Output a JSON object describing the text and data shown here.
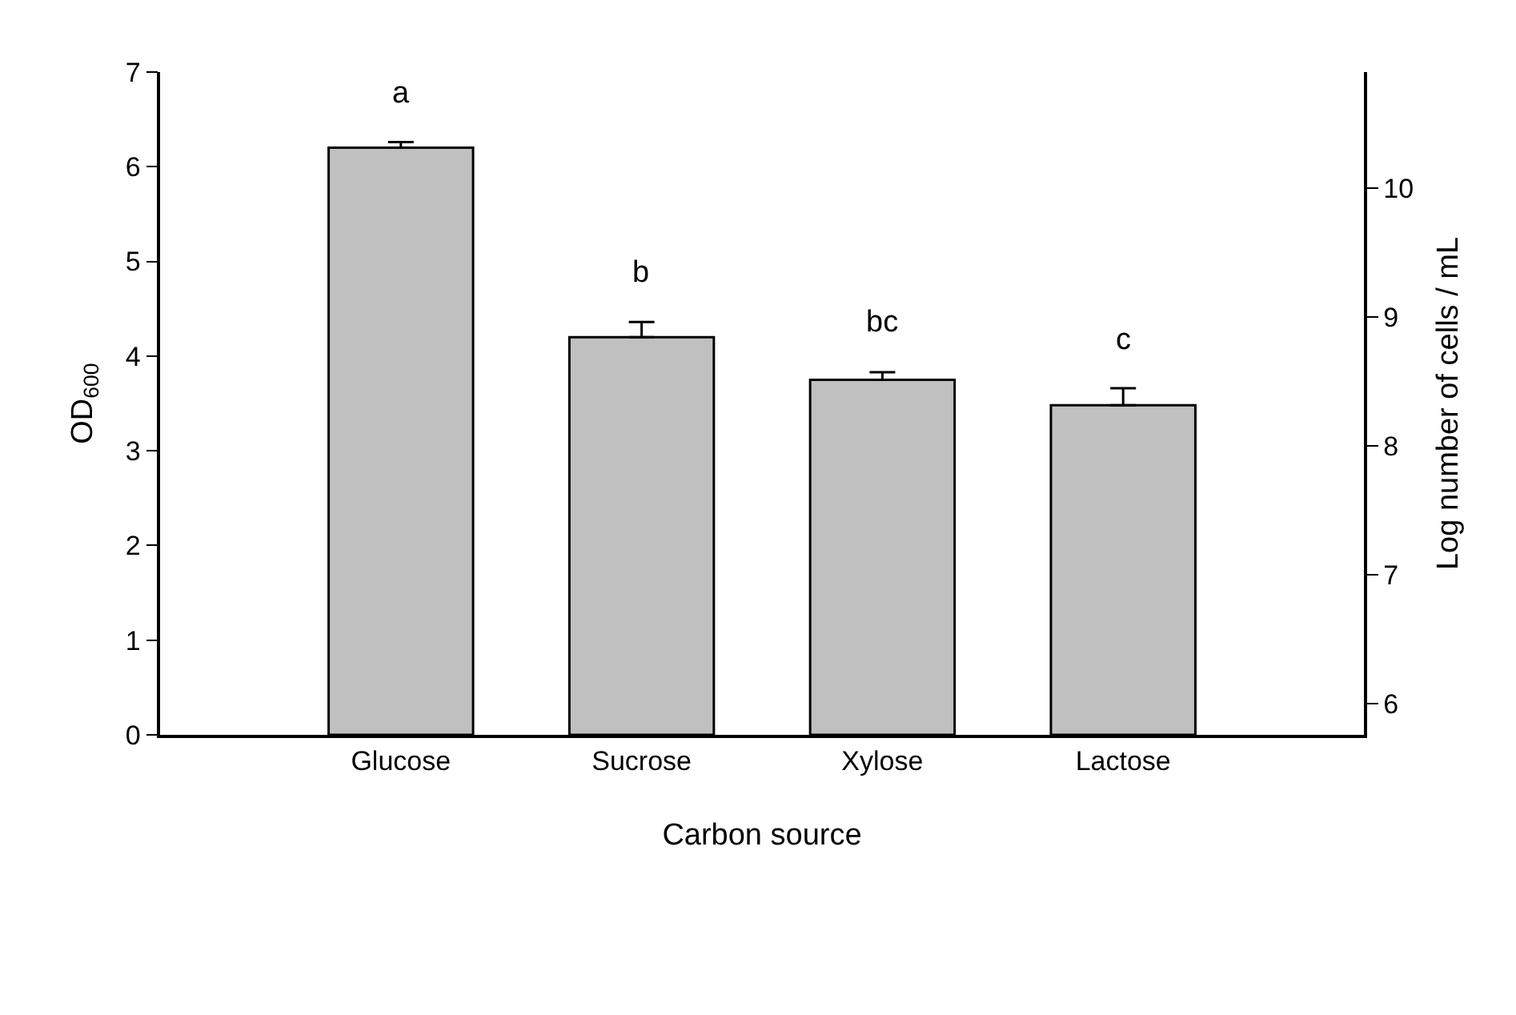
{
  "chart_data": {
    "type": "bar",
    "xlabel": "Carbon source",
    "ylabel": "OD$_{600}$",
    "y2label": "Log number of cells / mL",
    "categories": [
      "Glucose",
      "Sucrose",
      "Xylose",
      "Lactose"
    ],
    "series": [
      {
        "color": "#c0c0c0",
        "values": [
          6.2,
          4.2,
          3.75,
          3.48
        ],
        "errors": [
          [
            6.2,
            6.26
          ],
          [
            4.2,
            4.36
          ],
          [
            3.75,
            3.83
          ],
          [
            3.48,
            3.66
          ]
        ]
      }
    ],
    "ylim": [
      0,
      7
    ],
    "yticks": [
      0,
      1,
      2,
      3,
      4,
      5,
      6,
      7
    ],
    "y2lim": [
      5.76,
      10.9
    ],
    "y2ticks": [
      6,
      7,
      8,
      9,
      10
    ],
    "annotations": [
      "a",
      "b",
      "bc",
      "c"
    ],
    "legend": false
  }
}
